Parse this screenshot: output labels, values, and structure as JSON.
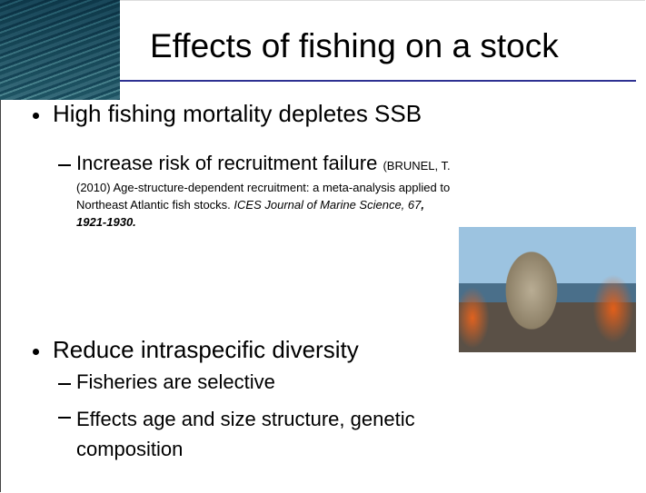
{
  "title": "Effects of fishing on a stock",
  "bullets": [
    {
      "text": "High fishing mortality depletes SSB",
      "sub": [
        {
          "text": "Increase risk of recruitment failure",
          "citation": [
            [
              {
                "text": "(BRUNEL, T.",
                "style": "normal"
              }
            ],
            [
              {
                "text": "(2010) Age-structure-dependent recruitment: a meta-analysis applied to",
                "style": "normal"
              }
            ],
            [
              {
                "text": "Northeast Atlantic fish stocks.",
                "style": "normal"
              },
              {
                "text": "ICES Journal of Marine Science, 67",
                "style": "italic"
              },
              {
                "text": ",",
                "style": "bold-italic"
              }
            ],
            [
              {
                "text": "1921-1930.",
                "style": "bold-italic"
              }
            ]
          ]
        }
      ]
    },
    {
      "text": "Reduce intraspecific diversity",
      "sub": [
        {
          "text": "Fisheries are selective"
        },
        {
          "text": "Effects age and size structure, genetic composition"
        }
      ]
    }
  ]
}
